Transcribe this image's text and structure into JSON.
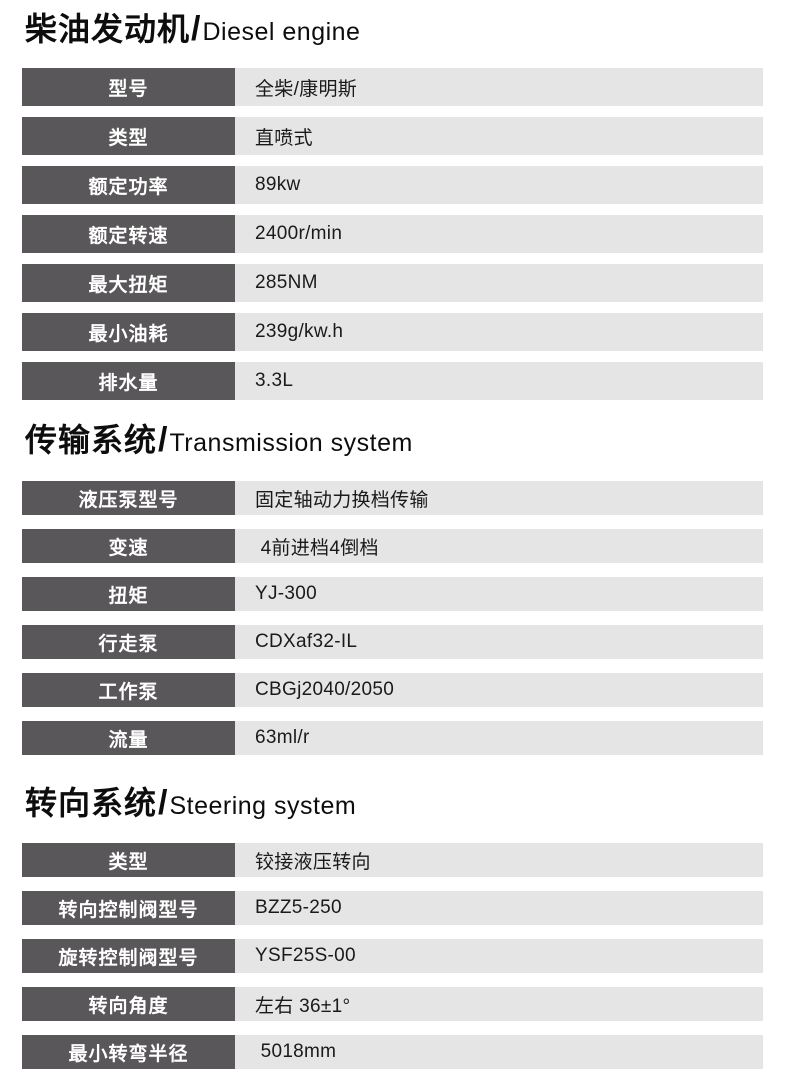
{
  "common": {
    "slash": "/"
  },
  "colors": {
    "page_bg": "#ffffff",
    "heading_text": "#0d0d0d",
    "label_bg": "#595759",
    "label_text": "#ffffff",
    "value_bg": "#e6e5e5",
    "value_text": "#1a1a1a"
  },
  "sections": [
    {
      "title_zh": "柴油发动机",
      "title_en": "Diesel engine",
      "rows": [
        {
          "label": "型号",
          "value": "全柴/康明斯"
        },
        {
          "label": "类型",
          "value": "直喷式"
        },
        {
          "label": "额定功率",
          "value": "89kw"
        },
        {
          "label": "额定转速",
          "value": "2400r/min"
        },
        {
          "label": "最大扭矩",
          "value": "285NM"
        },
        {
          "label": "最小油耗",
          "value": "239g/kw.h"
        },
        {
          "label": "排水量",
          "value": "3.3L"
        }
      ]
    },
    {
      "title_zh": "传输系统",
      "title_en": "Transmission system",
      "rows": [
        {
          "label": "液压泵型号",
          "value": "固定轴动力换档传输"
        },
        {
          "label": "变速",
          "value": " 4前进档4倒档"
        },
        {
          "label": "扭矩",
          "value": "YJ-300"
        },
        {
          "label": "行走泵",
          "value": "CDXaf32-IL"
        },
        {
          "label": "工作泵",
          "value": "CBGj2040/2050"
        },
        {
          "label": "流量",
          "value": "63ml/r"
        }
      ]
    },
    {
      "title_zh": "转向系统",
      "title_en": "Steering system",
      "rows": [
        {
          "label": "类型",
          "value": "铰接液压转向"
        },
        {
          "label": "转向控制阀型号",
          "value": "BZZ5-250"
        },
        {
          "label": "旋转控制阀型号",
          "value": "YSF25S-00"
        },
        {
          "label": "转向角度",
          "value": "左右 36±1°"
        },
        {
          "label": "最小转弯半径",
          "value": " 5018mm"
        }
      ]
    }
  ]
}
